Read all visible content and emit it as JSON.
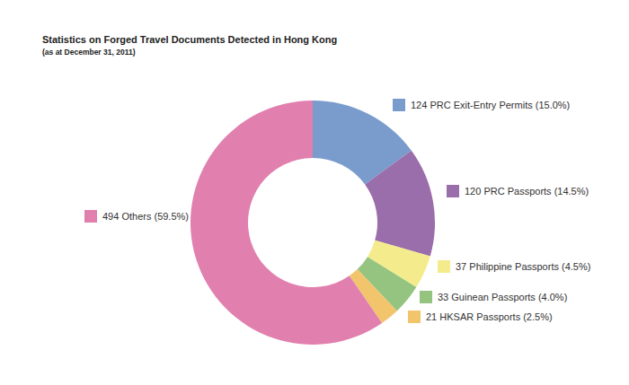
{
  "chart_data": {
    "type": "pie",
    "title": "Statistics on Forged Travel Documents Detected in Hong Kong",
    "subtitle": "(as at December 31, 2011)",
    "categories": [
      "PRC Exit-Entry Permits",
      "PRC Passports",
      "Philippine Passports",
      "Guinean Passports",
      "HKSAR Passports",
      "Others"
    ],
    "values": [
      124,
      120,
      37,
      33,
      21,
      494
    ],
    "value_labels": [
      "124 PRC Exit-Entry Permits (15.0%)",
      "120 PRC Passports (14.5%)",
      "37 Philippine Passports (4.5%)",
      "33 Guinean Passports (4.0%)",
      "21 HKSAR Passports (2.5%)",
      "494 Others (59.5%)"
    ],
    "colors": [
      "#7a9ccd",
      "#9a6dab",
      "#f4ec8c",
      "#94c47f",
      "#f2c46c",
      "#e17fae"
    ],
    "data_labels": true
  }
}
